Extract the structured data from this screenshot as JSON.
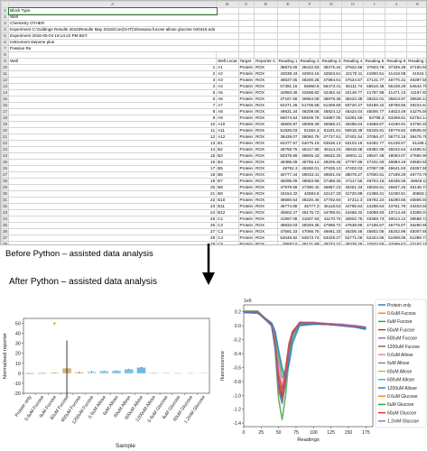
{
  "sheet": {
    "columns": [
      "A",
      "B",
      "C",
      "D",
      "E",
      "F",
      "G",
      "H",
      "I",
      "J",
      "K",
      "L",
      "M",
      "N",
      "O",
      "P"
    ],
    "meta_rows": [
      "Block Type",
      "Well",
      "Chemistry  OTHER",
      "Experiment C:\\Gddings Results 2016\\Results May 2016\\Con(GHT)\\Shewana fucose allose glucose 040416.eds",
      "Experiment 2016-05-04 19:14:22 PM BST",
      "Instrument  stepone plus",
      "Passive Re"
    ],
    "header": [
      "Well",
      "Well Locat",
      "Target",
      "Reporter C",
      "Reading 1",
      "Reading 2",
      "Reading 3",
      "Reading 4",
      "Reading 5",
      "Reading 6",
      "Reading 7",
      "Reading 8",
      "Reading 9",
      "Reading 10",
      "Reading 11",
      "Reading 12"
    ],
    "rows": [
      [
        "1",
        "A1",
        "Protein",
        "ROX",
        "38873.06",
        "38422.83",
        "38275.34",
        "37922.66",
        "37603.78",
        "37339.39",
        "37150.55",
        "36959.16",
        "36615.02",
        "36389.63",
        "36190.47",
        "35989.22"
      ],
      [
        "2",
        "A2",
        "Protein",
        "ROX",
        "43039.43",
        "42904.16",
        "42503.61",
        "42170.11",
        "41800.51",
        "41418.08",
        "41042.7",
        "40601.05",
        "40284.86",
        "39966.31",
        "39681.28",
        "39351.84"
      ],
      [
        "3",
        "A3",
        "Protein",
        "ROX",
        "48637.05",
        "48200.25",
        "47884.61",
        "47524.57",
        "47141.77",
        "46770.31",
        "46397.58",
        "46010.88",
        "45682.91",
        "45305.94",
        "44884.01",
        "44557.32"
      ],
      [
        "4",
        "A4",
        "Protein",
        "ROX",
        "57391.15",
        "56960.8",
        "56473.41",
        "56111.74",
        "55615.48",
        "55108.29",
        "54544.79",
        "54039.73",
        "53448.54",
        "52917.66",
        "52414.67",
        "51962.04"
      ],
      [
        "5",
        "A5",
        "Protein",
        "ROX",
        "42993.36",
        "42598.82",
        "42482.42",
        "42148.77",
        "41787.86",
        "41471.13",
        "41167.81",
        "40951.47",
        "40578.82",
        "40325.07",
        "40094.52",
        "39782.99"
      ],
      [
        "6",
        "A6",
        "Protein",
        "ROX",
        "37167.68",
        "36954.08",
        "36878.35",
        "36422.38",
        "36222.01",
        "35813.97",
        "35626.12",
        "35346.6",
        "34925.95",
        "34920.31",
        "34071.72",
        "33759.5"
      ],
      [
        "7",
        "A7",
        "Protein",
        "ROX",
        "52271.28",
        "51706.58",
        "51308.59",
        "50720.27",
        "50188.42",
        "49758.65",
        "49224.64",
        "48807.64",
        "48406.81",
        "47947.38",
        "47104.94",
        "46784.1"
      ],
      [
        "8",
        "A8",
        "Protein",
        "ROX",
        "49631.34",
        "48209.06",
        "45824.12",
        "45424.04",
        "45006.77",
        "44623.49",
        "44275.56",
        "43901.13",
        "43552.51",
        "43196.27",
        "42905.54",
        "42498.06"
      ],
      [
        "9",
        "A9",
        "Protein",
        "ROX",
        "56074.54",
        "55509.78",
        "54887.05",
        "54391.56",
        "53798.3",
        "53259.81",
        "52754.14",
        "52147.22",
        "51784.06",
        "51196.3",
        "50597.28",
        "50160.83"
      ],
      [
        "10",
        "A10",
        "Protein",
        "ROX",
        "46500.87",
        "46059.39",
        "45585.21",
        "45296.63",
        "44668.67",
        "44190.91",
        "43750.46",
        "43259.2",
        "42884.56",
        "42483.19",
        "41994.32",
        "41651.4"
      ],
      [
        "11",
        "A11",
        "Protein",
        "ROX",
        "51925.03",
        "51554.3",
        "51181.81",
        "50618.39",
        "50345.91",
        "49778.82",
        "49505.91",
        "48918.8",
        "48640.36",
        "48319.11",
        "47835.73",
        "47392.3"
      ],
      [
        "12",
        "A12",
        "Protein",
        "ROX",
        "38439.07",
        "38060.75",
        "37737.61",
        "37401.54",
        "37056.47",
        "36772.15",
        "36475.79",
        "36097.59",
        "35793.06",
        "35471.84",
        "35219.47",
        "34940.39"
      ],
      [
        "13",
        "B1",
        "Protein",
        "ROX",
        "64477.97",
        "64075.19",
        "63536.13",
        "63103.18",
        "62482.77",
        "61239.57",
        "61198.2",
        "60643.71",
        "79706.97",
        "79330.76",
        "78433.49",
        "77963.88"
      ],
      [
        "14",
        "B2",
        "Protein",
        "ROX",
        "46758.75",
        "46417.85",
        "46114.23",
        "45818.08",
        "45382.05",
        "45042.64",
        "44495.53",
        "44144.63",
        "43769.13",
        "43454.67",
        "43085.31",
        "42755.66"
      ],
      [
        "15",
        "B3",
        "Protein",
        "ROX",
        "50379.89",
        "49845.43",
        "49532.33",
        "49001.11",
        "48547.48",
        "48063.07",
        "47590.96",
        "47271.02",
        "46705.46",
        "46427.19",
        "45914.5",
        "45663.52"
      ],
      [
        "16",
        "B4",
        "Protein",
        "ROX",
        "49385.09",
        "48755.14",
        "48205.46",
        "47797.86",
        "47431.03",
        "46884.18",
        "46583.65",
        "46018",
        "45730.63",
        "45212.1",
        "44969.36",
        "44578.05"
      ],
      [
        "17",
        "B5",
        "Protein",
        "ROX",
        "48762.3",
        "48260.01",
        "47835.13",
        "47402.03",
        "47057.09",
        "46641.63",
        "46357.55",
        "45956.38",
        "45557.75",
        "45243.7",
        "44997.58",
        "44684.75"
      ],
      [
        "18",
        "B6",
        "Protein",
        "ROX",
        "40777.44",
        "49033.41",
        "48501.04",
        "48078.27",
        "47600.61",
        "47189.29",
        "46773.79",
        "46259.09",
        "45879.13",
        "45321.71",
        "45185.46",
        "44633.72"
      ],
      [
        "19",
        "B7",
        "Protein",
        "ROX",
        "48295.09",
        "48053.96",
        "47488.25",
        "47117.56",
        "46704.16",
        "46336.05",
        "45928.11",
        "45455.97",
        "44863.57",
        "44457.13",
        "44090.58",
        "43727.05"
      ],
      [
        "20",
        "B8",
        "Protein",
        "ROX",
        "47979.56",
        "47390.42",
        "46887.23",
        "46451.33",
        "46029.61",
        "45607.25",
        "45148.73",
        "44717.82",
        "44231.23",
        "44089.29",
        "43762.27",
        "43475.11"
      ],
      [
        "21",
        "B9",
        "Protein",
        "ROX",
        "43154.32",
        "42593.6",
        "42147.33",
        "41720.89",
        "41389.21",
        "41030.91",
        "40583.3",
        "40195.02",
        "39757.9",
        "39427.49",
        "39095.51",
        "38615.63"
      ],
      [
        "22",
        "B10",
        "Protein",
        "ROX",
        "48580.54",
        "48220.46",
        "47702.94",
        "47212.3",
        "46792.24",
        "46290.65",
        "45806.91",
        "45248.13",
        "44808.93",
        "44336.7",
        "43637.75",
        "43527.79"
      ],
      [
        "23",
        "B11",
        "Protein",
        "ROX",
        "46774.88",
        "45777.3",
        "45118.53",
        "44785.64",
        "44288.64",
        "43751.76",
        "43403.55",
        "42952.17",
        "42474.73",
        "42096.27",
        "41647.77",
        "41203.24"
      ],
      [
        "24",
        "B12",
        "Protein",
        "ROX",
        "45602.27",
        "45176.73",
        "44798.91",
        "44468.32",
        "44098.93",
        "43714.46",
        "43389.07",
        "42933.5",
        "42518.47",
        "42167.55",
        "41774.07",
        "41373.33"
      ],
      [
        "25",
        "C1",
        "Protein",
        "ROX",
        "41997.08",
        "41607.83",
        "41170.76",
        "40802.75",
        "40369.73",
        "40013.12",
        "39588.72",
        "39275.99",
        "38851.99",
        "38538.24",
        "38181.82",
        "37898.83"
      ],
      [
        "26",
        "C2",
        "Protein",
        "ROX",
        "48833.03",
        "48349.35",
        "47998.72",
        "47638.86",
        "47185.57",
        "46776.07",
        "46290.86",
        "45960.3",
        "45545.07",
        "45170.8",
        "44688.08",
        "44325.42"
      ],
      [
        "27",
        "C3",
        "Protein",
        "ROX",
        "47591.33",
        "47066.76",
        "46661.33",
        "46206.46",
        "45802.06",
        "45342.96",
        "45007.69",
        "44549.91",
        "44079.64",
        "43670.86",
        "43335.06",
        "42858.56"
      ],
      [
        "28",
        "C4",
        "Protein",
        "ROX",
        "54048.82",
        "53573.74",
        "53228.27",
        "52771.09",
        "52324.05",
        "51908.06",
        "51389.77",
        "50830.63",
        "50336.14",
        "49873.47",
        "49286.76",
        "48869.51"
      ],
      [
        "29",
        "C5",
        "Protein",
        "ROX",
        "39587.6",
        "39171.89",
        "38732.27",
        "38339.28",
        "37933.59",
        "37599.67",
        "37187.15",
        "36803.74",
        "36395.43",
        "36047.08",
        "35693.48",
        "35310.64"
      ]
    ]
  },
  "caption_before": "Before Python – assisted data analysis",
  "caption_after": "After Python – assisted data analysis",
  "left_chart": {
    "chart_data": {
      "type": "bar",
      "xlabel": "Sample",
      "ylabel": "Normalised reporter",
      "categories": [
        "Protein only",
        "0.6uM Fucose",
        "6uM Fucose",
        "60uM Fucose",
        "600uM Fucose",
        "1200uM Fucose",
        "0.6uM Allose",
        "6uM Allose",
        "60uM Allose",
        "600uM Allose",
        "1200uM Allose",
        "0.6uM Glucose",
        "6uM Glucose",
        "60uM Glucose",
        "1.2mM Glucose"
      ],
      "values": [
        0.1,
        0.2,
        0.6,
        5.0,
        1.0,
        1.8,
        2.2,
        2.5,
        4.0,
        5.7,
        0.3,
        0.3,
        0.2,
        0.2,
        0.3
      ],
      "errors": [
        0.1,
        0.1,
        0.3,
        28.0,
        0.5,
        0.4,
        0.3,
        0.4,
        0.3,
        0.4,
        0.1,
        0.1,
        0.1,
        0.1,
        0.1
      ],
      "outlier": {
        "category": "6uM Fucose",
        "value": 50
      },
      "ylim": [
        -20,
        55
      ],
      "yticks": [
        -20,
        -10,
        0,
        10,
        20,
        30,
        40,
        50
      ],
      "colors": [
        "#4a6fa5",
        "#6a8fc4",
        "#c9a86a",
        "#c9a86a",
        "#e0a66a",
        "#9fd0e8",
        "#7cc3e6",
        "#6fbde3",
        "#5fb5e0",
        "#55aee0",
        "#88c2d6",
        "#99d0c4",
        "#aad4c0",
        "#b0d8bc",
        "#c0dcba"
      ]
    }
  },
  "right_chart": {
    "chart_data": {
      "type": "line",
      "xlabel": "Readings",
      "ylabel": "fluorescence",
      "exponent_label": "1e6",
      "xlim": [
        0,
        185
      ],
      "ylim": [
        -1.45,
        0.3
      ],
      "xticks": [
        0,
        25,
        50,
        75,
        100,
        125,
        150,
        175
      ],
      "yticks": [
        0.2,
        0.0,
        -0.2,
        -0.4,
        -0.6,
        -0.8,
        -1.0,
        -1.2,
        -1.4
      ],
      "x": [
        0,
        20,
        40,
        45,
        50,
        55,
        60,
        65,
        70,
        80,
        100,
        120,
        140,
        160,
        175
      ],
      "series": [
        {
          "name": "Protein only",
          "color": "#1f77b4",
          "values": [
            0.2,
            0.2,
            0.0,
            -0.3,
            -0.9,
            -1.05,
            -0.7,
            -0.3,
            -0.1,
            0.05,
            0.04,
            0.03,
            0.02,
            0.0,
            -0.02
          ]
        },
        {
          "name": "0.6uM Fucose",
          "color": "#ff7f0e",
          "values": [
            0.2,
            0.2,
            0.0,
            -0.25,
            -0.85,
            -1.0,
            -0.75,
            -0.3,
            -0.1,
            0.03,
            0.03,
            0.02,
            0.0,
            -0.01,
            -0.03
          ]
        },
        {
          "name": "6uM Fucose",
          "color": "#2ca02c",
          "values": [
            0.21,
            0.21,
            0.02,
            -0.35,
            -1.05,
            -1.35,
            -1.0,
            -0.45,
            -0.15,
            0.02,
            0.03,
            0.02,
            0.01,
            -0.02,
            -0.05
          ]
        },
        {
          "name": "60uM Fucose",
          "color": "#d62728",
          "values": [
            0.2,
            0.19,
            0.01,
            -0.2,
            -0.7,
            -0.9,
            -0.6,
            -0.25,
            -0.08,
            0.04,
            0.04,
            0.02,
            0.01,
            -0.01,
            -0.03
          ]
        },
        {
          "name": "600uM Fucose",
          "color": "#9467bd",
          "values": [
            0.2,
            0.19,
            0.0,
            -0.3,
            -0.9,
            -1.1,
            -0.8,
            -0.35,
            -0.12,
            0.05,
            0.05,
            0.03,
            0.02,
            0.0,
            -0.02
          ]
        },
        {
          "name": "1200uM Fucose",
          "color": "#8c564b",
          "values": [
            0.19,
            0.19,
            0.01,
            -0.22,
            -0.75,
            -0.95,
            -0.7,
            -0.3,
            -0.1,
            0.02,
            0.03,
            0.02,
            0.01,
            -0.01,
            -0.04
          ]
        },
        {
          "name": "0.6uM Allose",
          "color": "#e377c2",
          "values": [
            0.2,
            0.2,
            0.02,
            -0.2,
            -0.6,
            -0.85,
            -0.75,
            -0.4,
            -0.15,
            0.03,
            0.04,
            0.03,
            0.02,
            0.0,
            -0.03
          ]
        },
        {
          "name": "6uM Allose",
          "color": "#7f7f7f",
          "values": [
            0.2,
            0.2,
            0.03,
            -0.15,
            -0.5,
            -0.75,
            -0.65,
            -0.38,
            -0.14,
            0.02,
            0.03,
            0.02,
            0.01,
            -0.01,
            -0.04
          ]
        },
        {
          "name": "60uM Allose",
          "color": "#bcbd22",
          "values": [
            0.2,
            0.19,
            0.03,
            -0.12,
            -0.45,
            -0.7,
            -0.7,
            -0.45,
            -0.18,
            0.02,
            0.03,
            0.02,
            0.01,
            -0.01,
            -0.04
          ]
        },
        {
          "name": "600uM Allose",
          "color": "#17becf",
          "values": [
            0.19,
            0.19,
            0.04,
            -0.1,
            -0.4,
            -0.65,
            -0.75,
            -0.5,
            -0.2,
            0.01,
            0.03,
            0.02,
            0.0,
            -0.02,
            -0.05
          ]
        },
        {
          "name": "1200uM Allose",
          "color": "#1f77b4",
          "values": [
            0.19,
            0.18,
            0.04,
            -0.08,
            -0.35,
            -0.6,
            -0.75,
            -0.55,
            -0.25,
            0.0,
            0.02,
            0.02,
            0.0,
            -0.02,
            -0.05
          ]
        },
        {
          "name": "0.6uM Glucose",
          "color": "#ff7f0e",
          "values": [
            0.2,
            0.2,
            0.01,
            -0.25,
            -0.8,
            -1.0,
            -0.72,
            -0.3,
            -0.1,
            0.04,
            0.04,
            0.03,
            0.01,
            -0.01,
            -0.03
          ]
        },
        {
          "name": "6uM Glucose",
          "color": "#2ca02c",
          "values": [
            0.2,
            0.2,
            0.0,
            -0.28,
            -0.88,
            -1.1,
            -0.8,
            -0.35,
            -0.12,
            0.03,
            0.04,
            0.02,
            0.01,
            -0.01,
            -0.03
          ]
        },
        {
          "name": "60uM Glucose",
          "color": "#d62728",
          "values": [
            0.2,
            0.2,
            0.01,
            -0.26,
            -0.82,
            -1.02,
            -0.74,
            -0.32,
            -0.1,
            0.04,
            0.04,
            0.02,
            0.01,
            -0.01,
            -0.03
          ]
        },
        {
          "name": "1.2mM Glucose",
          "color": "#9467bd",
          "values": [
            0.2,
            0.2,
            0.0,
            -0.3,
            -0.92,
            -1.12,
            -0.82,
            -0.36,
            -0.12,
            0.03,
            0.04,
            0.03,
            0.01,
            -0.01,
            -0.03
          ]
        }
      ]
    }
  }
}
